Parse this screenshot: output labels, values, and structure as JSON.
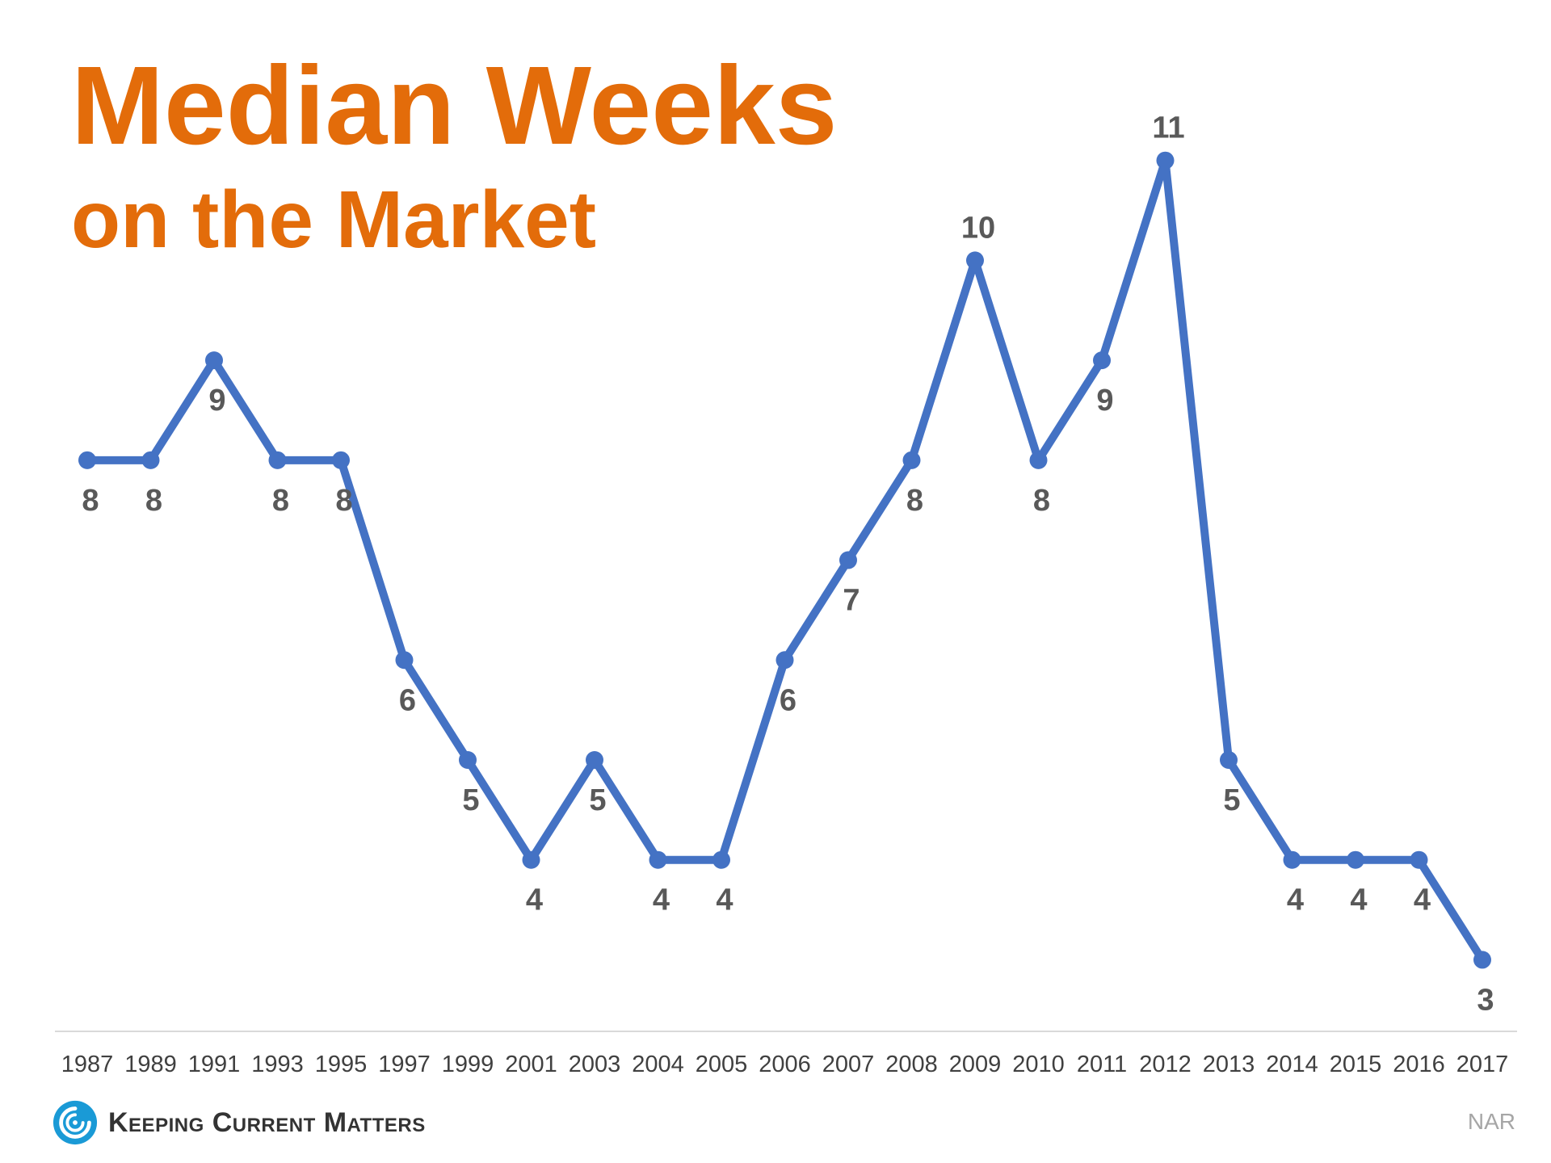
{
  "chart_data": {
    "type": "line",
    "title": "Median Weeks",
    "subtitle": "on the Market",
    "categories": [
      "1987",
      "1989",
      "1991",
      "1993",
      "1995",
      "1997",
      "1999",
      "2001",
      "2003",
      "2004",
      "2005",
      "2006",
      "2007",
      "2008",
      "2009",
      "2010",
      "2011",
      "2012",
      "2013",
      "2014",
      "2015",
      "2016",
      "2017"
    ],
    "series": [
      {
        "values": [
          8,
          8,
          9,
          8,
          8,
          6,
          5,
          4,
          5,
          4,
          4,
          6,
          7,
          8,
          10,
          8,
          9,
          11,
          5,
          4,
          4,
          4,
          3
        ]
      }
    ],
    "xlabel": "",
    "ylabel": "",
    "ylim": [
      2.3,
      12
    ],
    "grid": false,
    "legend": "none",
    "data_labels": true,
    "label_positions": [
      "below",
      "below",
      "below",
      "below",
      "below",
      "below",
      "below",
      "below",
      "below",
      "below",
      "below",
      "below",
      "below",
      "below",
      "above",
      "below",
      "below",
      "above",
      "below",
      "below",
      "below",
      "below",
      "below"
    ],
    "colors": {
      "line": "#4472c4",
      "labels": "#595959",
      "axis_line": "#d9d9d9",
      "tick_labels": "#404040",
      "title": "#e36c0a"
    }
  },
  "footer": {
    "logo_text": "Keeping Current Matters",
    "logo_icon": "swirl-logo-icon",
    "source": "NAR"
  }
}
